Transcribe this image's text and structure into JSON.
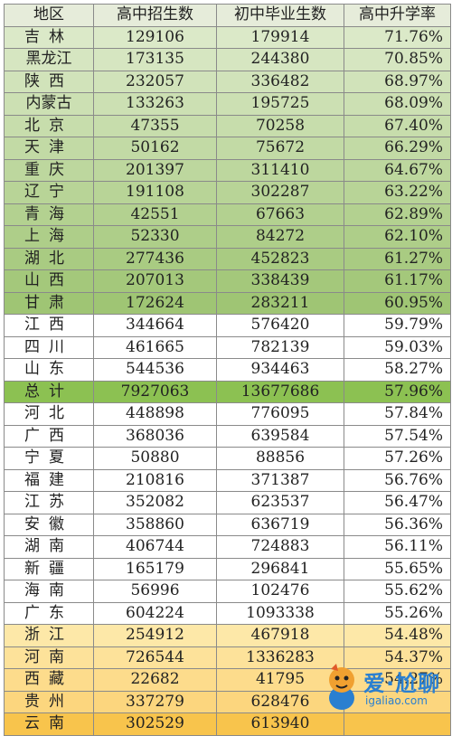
{
  "headers": [
    "地区",
    "高中招生数",
    "初中毕业生数",
    "高中升学率"
  ],
  "rows": [
    {
      "region": "吉林",
      "enroll": "129106",
      "grads": "179914",
      "rate": "71.76%",
      "bg": "#dbe9c8"
    },
    {
      "region": "黑龙江",
      "enroll": "173135",
      "grads": "244380",
      "rate": "70.85%",
      "bg": "#d6e6c1"
    },
    {
      "region": "陕西",
      "enroll": "232057",
      "grads": "336482",
      "rate": "68.97%",
      "bg": "#d1e3ba"
    },
    {
      "region": "内蒙古",
      "enroll": "133263",
      "grads": "195725",
      "rate": "68.09%",
      "bg": "#cce0b3"
    },
    {
      "region": "北京",
      "enroll": "47355",
      "grads": "70258",
      "rate": "67.40%",
      "bg": "#c7ddac"
    },
    {
      "region": "天津",
      "enroll": "50162",
      "grads": "75672",
      "rate": "66.29%",
      "bg": "#c2daa5"
    },
    {
      "region": "重庆",
      "enroll": "201397",
      "grads": "311410",
      "rate": "64.67%",
      "bg": "#bdd79e"
    },
    {
      "region": "辽宁",
      "enroll": "191108",
      "grads": "302287",
      "rate": "63.22%",
      "bg": "#b8d497"
    },
    {
      "region": "青海",
      "enroll": "42551",
      "grads": "67663",
      "rate": "62.89%",
      "bg": "#b3d190"
    },
    {
      "region": "上海",
      "enroll": "52330",
      "grads": "84272",
      "rate": "62.10%",
      "bg": "#aece89"
    },
    {
      "region": "湖北",
      "enroll": "277436",
      "grads": "452823",
      "rate": "61.27%",
      "bg": "#a9cb82"
    },
    {
      "region": "山西",
      "enroll": "207013",
      "grads": "338439",
      "rate": "61.17%",
      "bg": "#a4c87b"
    },
    {
      "region": "甘肃",
      "enroll": "172624",
      "grads": "283211",
      "rate": "60.95%",
      "bg": "#9fc574"
    },
    {
      "region": "江西",
      "enroll": "344664",
      "grads": "576420",
      "rate": "59.79%",
      "bg": "#ffffff"
    },
    {
      "region": "四川",
      "enroll": "461665",
      "grads": "782139",
      "rate": "59.03%",
      "bg": "#ffffff"
    },
    {
      "region": "山东",
      "enroll": "544536",
      "grads": "934463",
      "rate": "58.27%",
      "bg": "#ffffff"
    },
    {
      "region": "总计",
      "enroll": "7927063",
      "grads": "13677686",
      "rate": "57.96%",
      "bg": "#8cc152"
    },
    {
      "region": "河北",
      "enroll": "448898",
      "grads": "776095",
      "rate": "57.84%",
      "bg": "#ffffff"
    },
    {
      "region": "广西",
      "enroll": "368036",
      "grads": "639584",
      "rate": "57.54%",
      "bg": "#ffffff"
    },
    {
      "region": "宁夏",
      "enroll": "50880",
      "grads": "88856",
      "rate": "57.26%",
      "bg": "#ffffff"
    },
    {
      "region": "福建",
      "enroll": "210816",
      "grads": "371387",
      "rate": "56.76%",
      "bg": "#ffffff"
    },
    {
      "region": "江苏",
      "enroll": "352082",
      "grads": "623537",
      "rate": "56.47%",
      "bg": "#ffffff"
    },
    {
      "region": "安徽",
      "enroll": "358860",
      "grads": "636719",
      "rate": "56.36%",
      "bg": "#ffffff"
    },
    {
      "region": "湖南",
      "enroll": "406744",
      "grads": "724883",
      "rate": "56.11%",
      "bg": "#ffffff"
    },
    {
      "region": "新疆",
      "enroll": "165179",
      "grads": "296841",
      "rate": "55.65%",
      "bg": "#ffffff"
    },
    {
      "region": "海南",
      "enroll": "56996",
      "grads": "102476",
      "rate": "55.62%",
      "bg": "#ffffff"
    },
    {
      "region": "广东",
      "enroll": "604224",
      "grads": "1093338",
      "rate": "55.26%",
      "bg": "#ffffff"
    },
    {
      "region": "浙江",
      "enroll": "254912",
      "grads": "467918",
      "rate": "54.48%",
      "bg": "#fde8a8"
    },
    {
      "region": "河南",
      "enroll": "726544",
      "grads": "1336283",
      "rate": "54.37%",
      "bg": "#fde29a"
    },
    {
      "region": "西藏",
      "enroll": "22682",
      "grads": "41795",
      "rate": "54.27%",
      "bg": "#fddc8c"
    },
    {
      "region": "贵州",
      "enroll": "337279",
      "grads": "628476",
      "rate": "",
      "bg": "#fcd67e"
    },
    {
      "region": "云南",
      "enroll": "302529",
      "grads": "613940",
      "rate": "",
      "bg": "#f8c44c"
    }
  ],
  "header_bg": "#e6ecda",
  "watermark": {
    "brand": "爱·尬聊",
    "url": "igaliao.com"
  }
}
